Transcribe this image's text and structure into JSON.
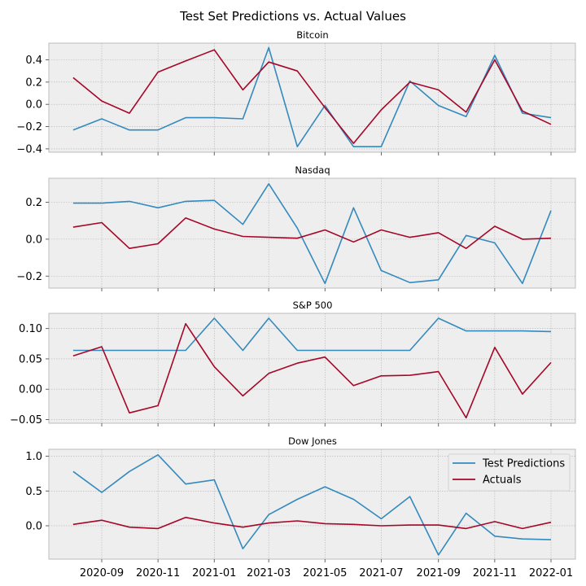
{
  "figure": {
    "title": "Test Set Predictions vs. Actual Values"
  },
  "chart_data": {
    "type": "line",
    "x": [
      "2020-08-01",
      "2020-09-01",
      "2020-10-01",
      "2020-11-01",
      "2020-12-01",
      "2021-01-01",
      "2021-02-01",
      "2021-03-01",
      "2021-04-01",
      "2021-05-01",
      "2021-06-01",
      "2021-07-01",
      "2021-08-01",
      "2021-09-01",
      "2021-10-01",
      "2021-11-01",
      "2021-12-01",
      "2022-01-01"
    ],
    "x_ticks": [
      "2020-09",
      "2020-11",
      "2021-01",
      "2021-03",
      "2021-05",
      "2021-07",
      "2021-09",
      "2021-11",
      "2022-01"
    ],
    "colors": {
      "Test Predictions": "#348ABD",
      "Actuals": "#A60628"
    },
    "grid": true,
    "legend": {
      "location": "upper right",
      "panel": "Dow Jones",
      "entries": [
        "Test Predictions",
        "Actuals"
      ]
    },
    "panels": [
      {
        "title": "Bitcoin",
        "ylim": [
          -0.43,
          0.55
        ],
        "yticks": [
          -0.4,
          -0.2,
          0.0,
          0.2,
          0.4
        ],
        "ytick_labels": [
          "−0.4",
          "−0.2",
          "0.0",
          "0.2",
          "0.4"
        ],
        "series": [
          {
            "name": "Test Predictions",
            "values": [
              -0.23,
              -0.13,
              -0.23,
              -0.23,
              -0.12,
              -0.12,
              -0.13,
              0.51,
              -0.38,
              -0.01,
              -0.38,
              -0.38,
              0.21,
              -0.01,
              -0.11,
              0.44,
              -0.08,
              -0.12
            ]
          },
          {
            "name": "Actuals",
            "values": [
              0.24,
              0.03,
              -0.08,
              0.29,
              0.39,
              0.49,
              0.13,
              0.38,
              0.3,
              -0.03,
              -0.35,
              -0.05,
              0.2,
              0.13,
              -0.07,
              0.4,
              -0.06,
              -0.18
            ]
          }
        ]
      },
      {
        "title": "Nasdaq",
        "ylim": [
          -0.265,
          0.33
        ],
        "yticks": [
          -0.2,
          0.0,
          0.2
        ],
        "ytick_labels": [
          "−0.2",
          "0.0",
          "0.2"
        ],
        "series": [
          {
            "name": "Test Predictions",
            "values": [
              0.195,
              0.195,
              0.205,
              0.17,
              0.205,
              0.21,
              0.08,
              0.3,
              0.06,
              -0.24,
              0.17,
              -0.17,
              -0.235,
              -0.22,
              0.02,
              -0.02,
              -0.24,
              0.155
            ]
          },
          {
            "name": "Actuals",
            "values": [
              0.065,
              0.09,
              -0.05,
              -0.025,
              0.115,
              0.055,
              0.015,
              0.01,
              0.005,
              0.05,
              -0.015,
              0.05,
              0.01,
              0.035,
              -0.05,
              0.07,
              0.0,
              0.005
            ]
          }
        ]
      },
      {
        "title": "S&P 500",
        "ylim": [
          -0.056,
          0.125
        ],
        "yticks": [
          -0.05,
          0.0,
          0.05,
          0.1
        ],
        "ytick_labels": [
          "−0.05",
          "0.00",
          "0.05",
          "0.10"
        ],
        "series": [
          {
            "name": "Test Predictions",
            "values": [
              0.064,
              0.064,
              0.064,
              0.064,
              0.064,
              0.117,
              0.064,
              0.117,
              0.064,
              0.064,
              0.064,
              0.064,
              0.064,
              0.117,
              0.096,
              0.096,
              0.096,
              0.095
            ]
          },
          {
            "name": "Actuals",
            "values": [
              0.055,
              0.07,
              -0.039,
              -0.027,
              0.108,
              0.037,
              -0.011,
              0.026,
              0.043,
              0.053,
              0.006,
              0.022,
              0.023,
              0.029,
              -0.047,
              0.069,
              -0.008,
              0.044
            ]
          }
        ]
      },
      {
        "title": "Dow Jones",
        "ylim": [
          -0.48,
          1.1
        ],
        "yticks": [
          0.0,
          0.5,
          1.0
        ],
        "ytick_labels": [
          "0.0",
          "0.5",
          "1.0"
        ],
        "series": [
          {
            "name": "Test Predictions",
            "values": [
              0.78,
              0.48,
              0.78,
              1.02,
              0.6,
              0.66,
              -0.33,
              0.16,
              0.38,
              0.56,
              0.38,
              0.1,
              0.42,
              -0.42,
              0.18,
              -0.15,
              -0.19,
              -0.2
            ]
          },
          {
            "name": "Actuals",
            "values": [
              0.02,
              0.08,
              -0.02,
              -0.04,
              0.12,
              0.04,
              -0.02,
              0.04,
              0.07,
              0.03,
              0.02,
              0.0,
              0.01,
              0.01,
              -0.04,
              0.06,
              -0.04,
              0.05
            ]
          }
        ]
      }
    ]
  }
}
